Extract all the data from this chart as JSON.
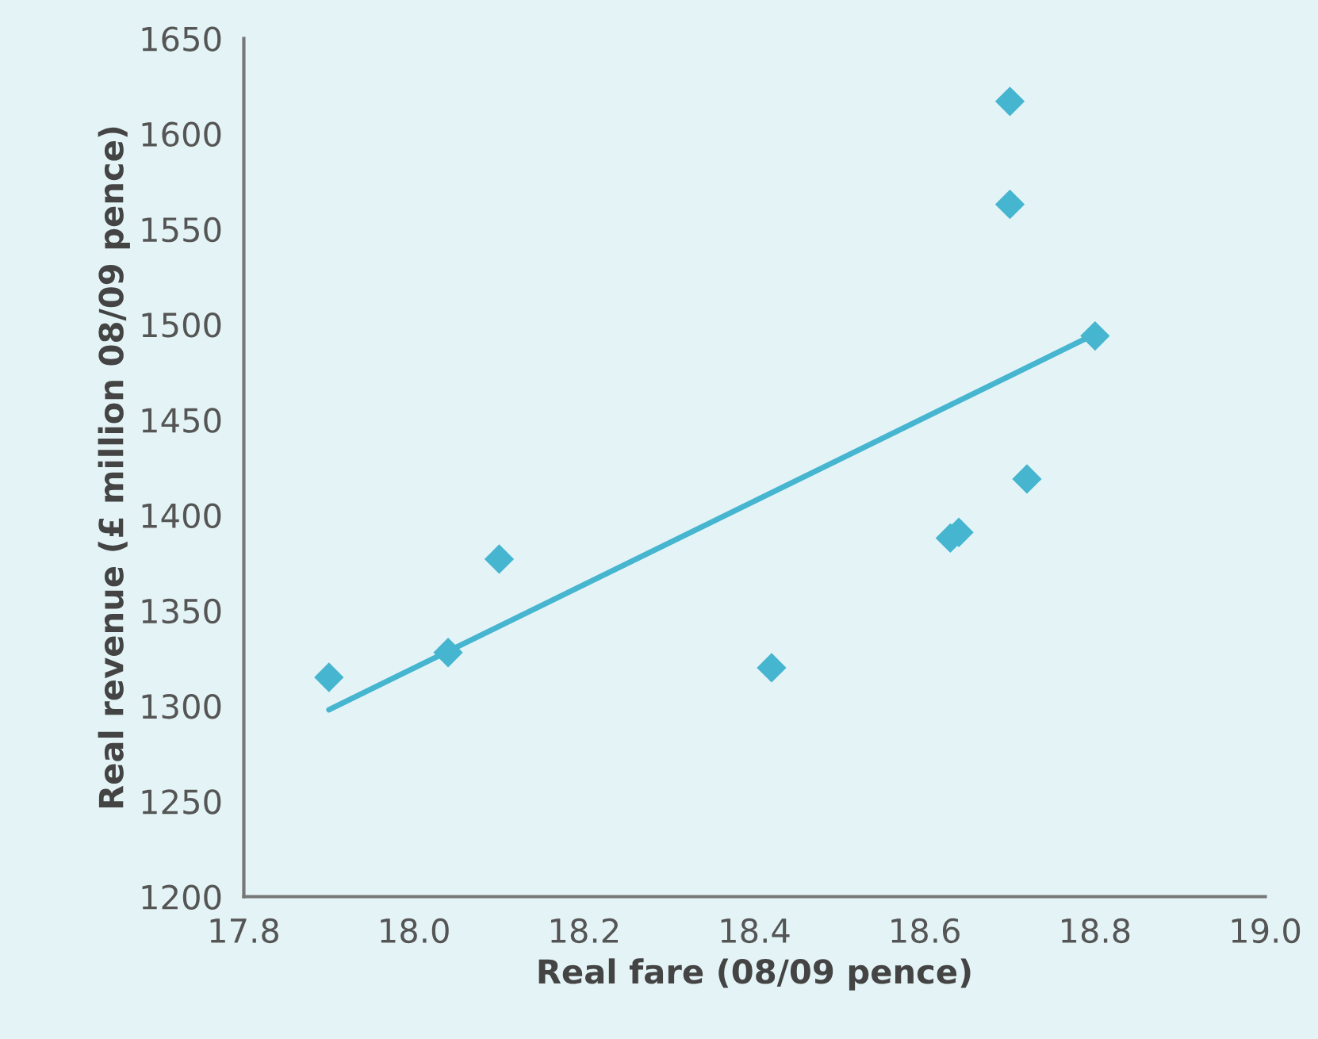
{
  "chart_data": {
    "type": "scatter",
    "xlabel": "Real fare (08/09 pence)",
    "ylabel": "Real revenue (£ million 08/09 pence)",
    "series": [
      {
        "color": "#45b5d0",
        "marker": "diamond",
        "x": [
          17.9,
          18.04,
          18.1,
          18.42,
          18.63,
          18.64,
          18.72,
          18.7,
          18.7,
          18.8
        ],
        "values": [
          1315,
          1328,
          1377,
          1320,
          1388,
          1391,
          1419,
          1563,
          1617,
          1494
        ]
      },
      {
        "type": "line",
        "color": "#45b5d0",
        "marker": "none",
        "line_style": "solid",
        "x": [
          17.9,
          18.8
        ],
        "values": [
          1298,
          1495
        ]
      }
    ],
    "xlim": [
      17.8,
      19.0
    ],
    "xticks": [
      {
        "value": 17.8,
        "label": "17.8"
      },
      {
        "value": 18.0,
        "label": "18.0"
      },
      {
        "value": 18.2,
        "label": "18.2"
      },
      {
        "value": 18.4,
        "label": "18.4"
      },
      {
        "value": 18.6,
        "label": "18.6"
      },
      {
        "value": 18.8,
        "label": "18.8"
      },
      {
        "value": 19.0,
        "label": "19.0"
      }
    ],
    "ylim": [
      1200,
      1650
    ],
    "yticks": [
      1200,
      1250,
      1300,
      1350,
      1400,
      1450,
      1500,
      1550,
      1600,
      1650
    ],
    "grid": false,
    "legend": false
  }
}
